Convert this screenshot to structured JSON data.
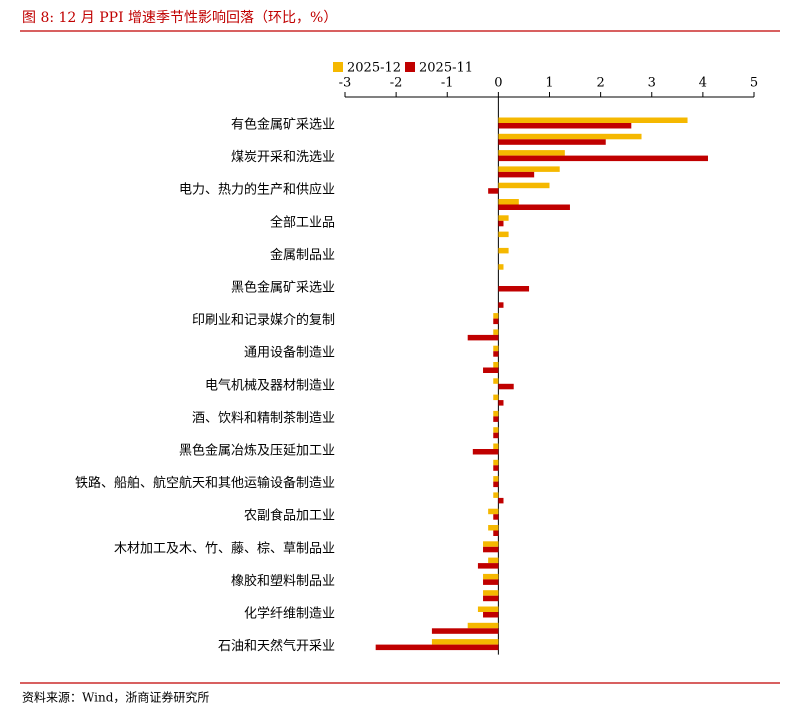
{
  "chart_data": {
    "type": "bar",
    "orientation": "horizontal",
    "title": "图 8:  12 月 PPI 增速季节性影响回落（环比，%）",
    "source": "资料来源：Wind，浙商证券研究所",
    "categories": [
      "有色金属矿采选业",
      null,
      "煤炭开采和洗选业",
      null,
      "电力、热力的生产和供应业",
      null,
      "全部工业品",
      null,
      "金属制品业",
      null,
      "黑色金属矿采选业",
      null,
      "印刷业和记录媒介的复制",
      null,
      "通用设备制造业",
      null,
      "电气机械及器材制造业",
      null,
      "酒、饮料和精制茶制造业",
      null,
      "黑色金属冶炼及压延加工业",
      null,
      "铁路、船舶、航空航天和其他运输设备制造业",
      null,
      "农副食品加工业",
      null,
      "木材加工及木、竹、藤、棕、草制品业",
      null,
      "橡胶和塑料制品业",
      null,
      "化学纤维制造业",
      null,
      "石油和天然气开采业"
    ],
    "series": [
      {
        "name": "2025-12",
        "color": "#f5b800",
        "values": [
          3.7,
          2.8,
          1.3,
          1.2,
          1.0,
          0.4,
          0.2,
          0.2,
          0.2,
          0.1,
          0.0,
          0.0,
          -0.1,
          -0.1,
          -0.1,
          -0.1,
          -0.1,
          -0.1,
          -0.1,
          -0.1,
          -0.1,
          -0.1,
          -0.1,
          -0.1,
          -0.2,
          -0.2,
          -0.3,
          -0.2,
          -0.3,
          -0.3,
          -0.4,
          -0.6,
          -1.3
        ]
      },
      {
        "name": "2025-11",
        "color": "#c00000",
        "values": [
          2.6,
          2.1,
          4.1,
          0.7,
          -0.2,
          1.4,
          0.1,
          0.0,
          0.0,
          0.0,
          0.6,
          0.1,
          -0.1,
          -0.6,
          -0.1,
          -0.3,
          0.3,
          0.1,
          -0.1,
          -0.1,
          -0.5,
          -0.1,
          -0.1,
          0.1,
          -0.1,
          -0.1,
          -0.3,
          -0.4,
          -0.3,
          -0.3,
          -0.3,
          -1.3,
          -2.4
        ]
      }
    ],
    "xlim": [
      -3,
      5
    ],
    "xticks": [
      -3,
      -2,
      -1,
      0,
      1,
      2,
      3,
      4,
      5
    ]
  }
}
